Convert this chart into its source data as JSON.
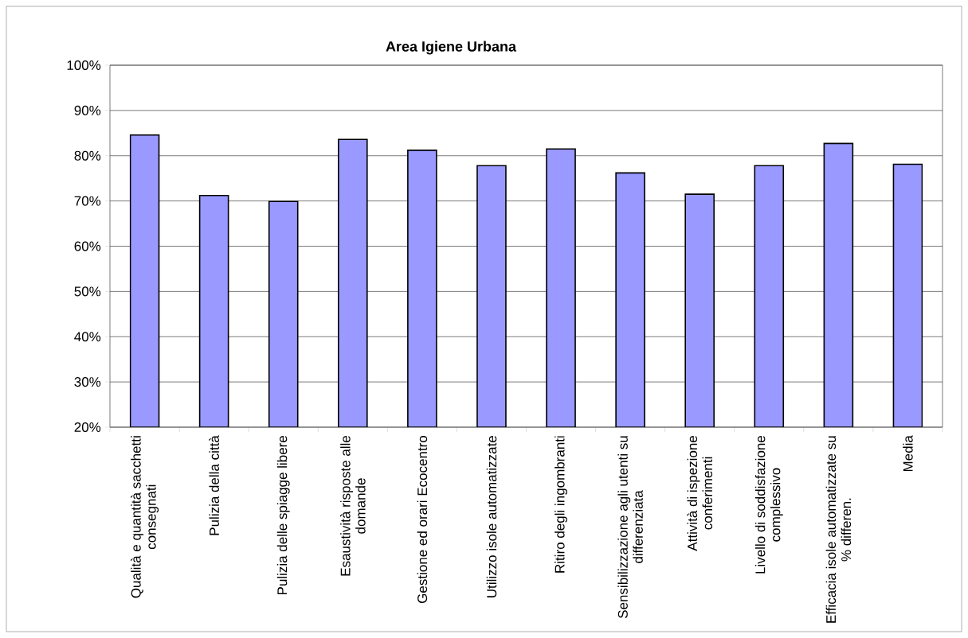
{
  "chart_data": {
    "type": "bar",
    "title": "Area Igiene Urbana",
    "categories": [
      "Qualità e quantità sacchetti consegnati",
      "Pulizia della città",
      "Pulizia delle spiagge libere",
      "Esaustività risposte alle domande",
      "Gestione ed orari Ecocentro",
      "Utilizzo isole automatizzate",
      "Ritiro degli ingombranti",
      "Sensibilizzazione agli utenti su differenziata",
      "Attività di ispezione conferimenti",
      "Livello di soddisfazione complessivo",
      "Efficacia isole automatizzate su % differen.",
      "Media"
    ],
    "values": [
      84.6,
      71.2,
      69.9,
      83.6,
      81.2,
      77.8,
      81.5,
      76.2,
      71.5,
      77.8,
      82.7,
      78.1
    ],
    "color": "#9999ff",
    "ylim": [
      20,
      100
    ],
    "yticks": [
      {
        "value": 20,
        "label": "20%"
      },
      {
        "value": 30,
        "label": "30%"
      },
      {
        "value": 40,
        "label": "40%"
      },
      {
        "value": 50,
        "label": "50%"
      },
      {
        "value": 60,
        "label": "60%"
      },
      {
        "value": 70,
        "label": "70%"
      },
      {
        "value": 80,
        "label": "80%"
      },
      {
        "value": 90,
        "label": "90%"
      },
      {
        "value": 100,
        "label": "100%"
      }
    ],
    "grid": "y"
  }
}
